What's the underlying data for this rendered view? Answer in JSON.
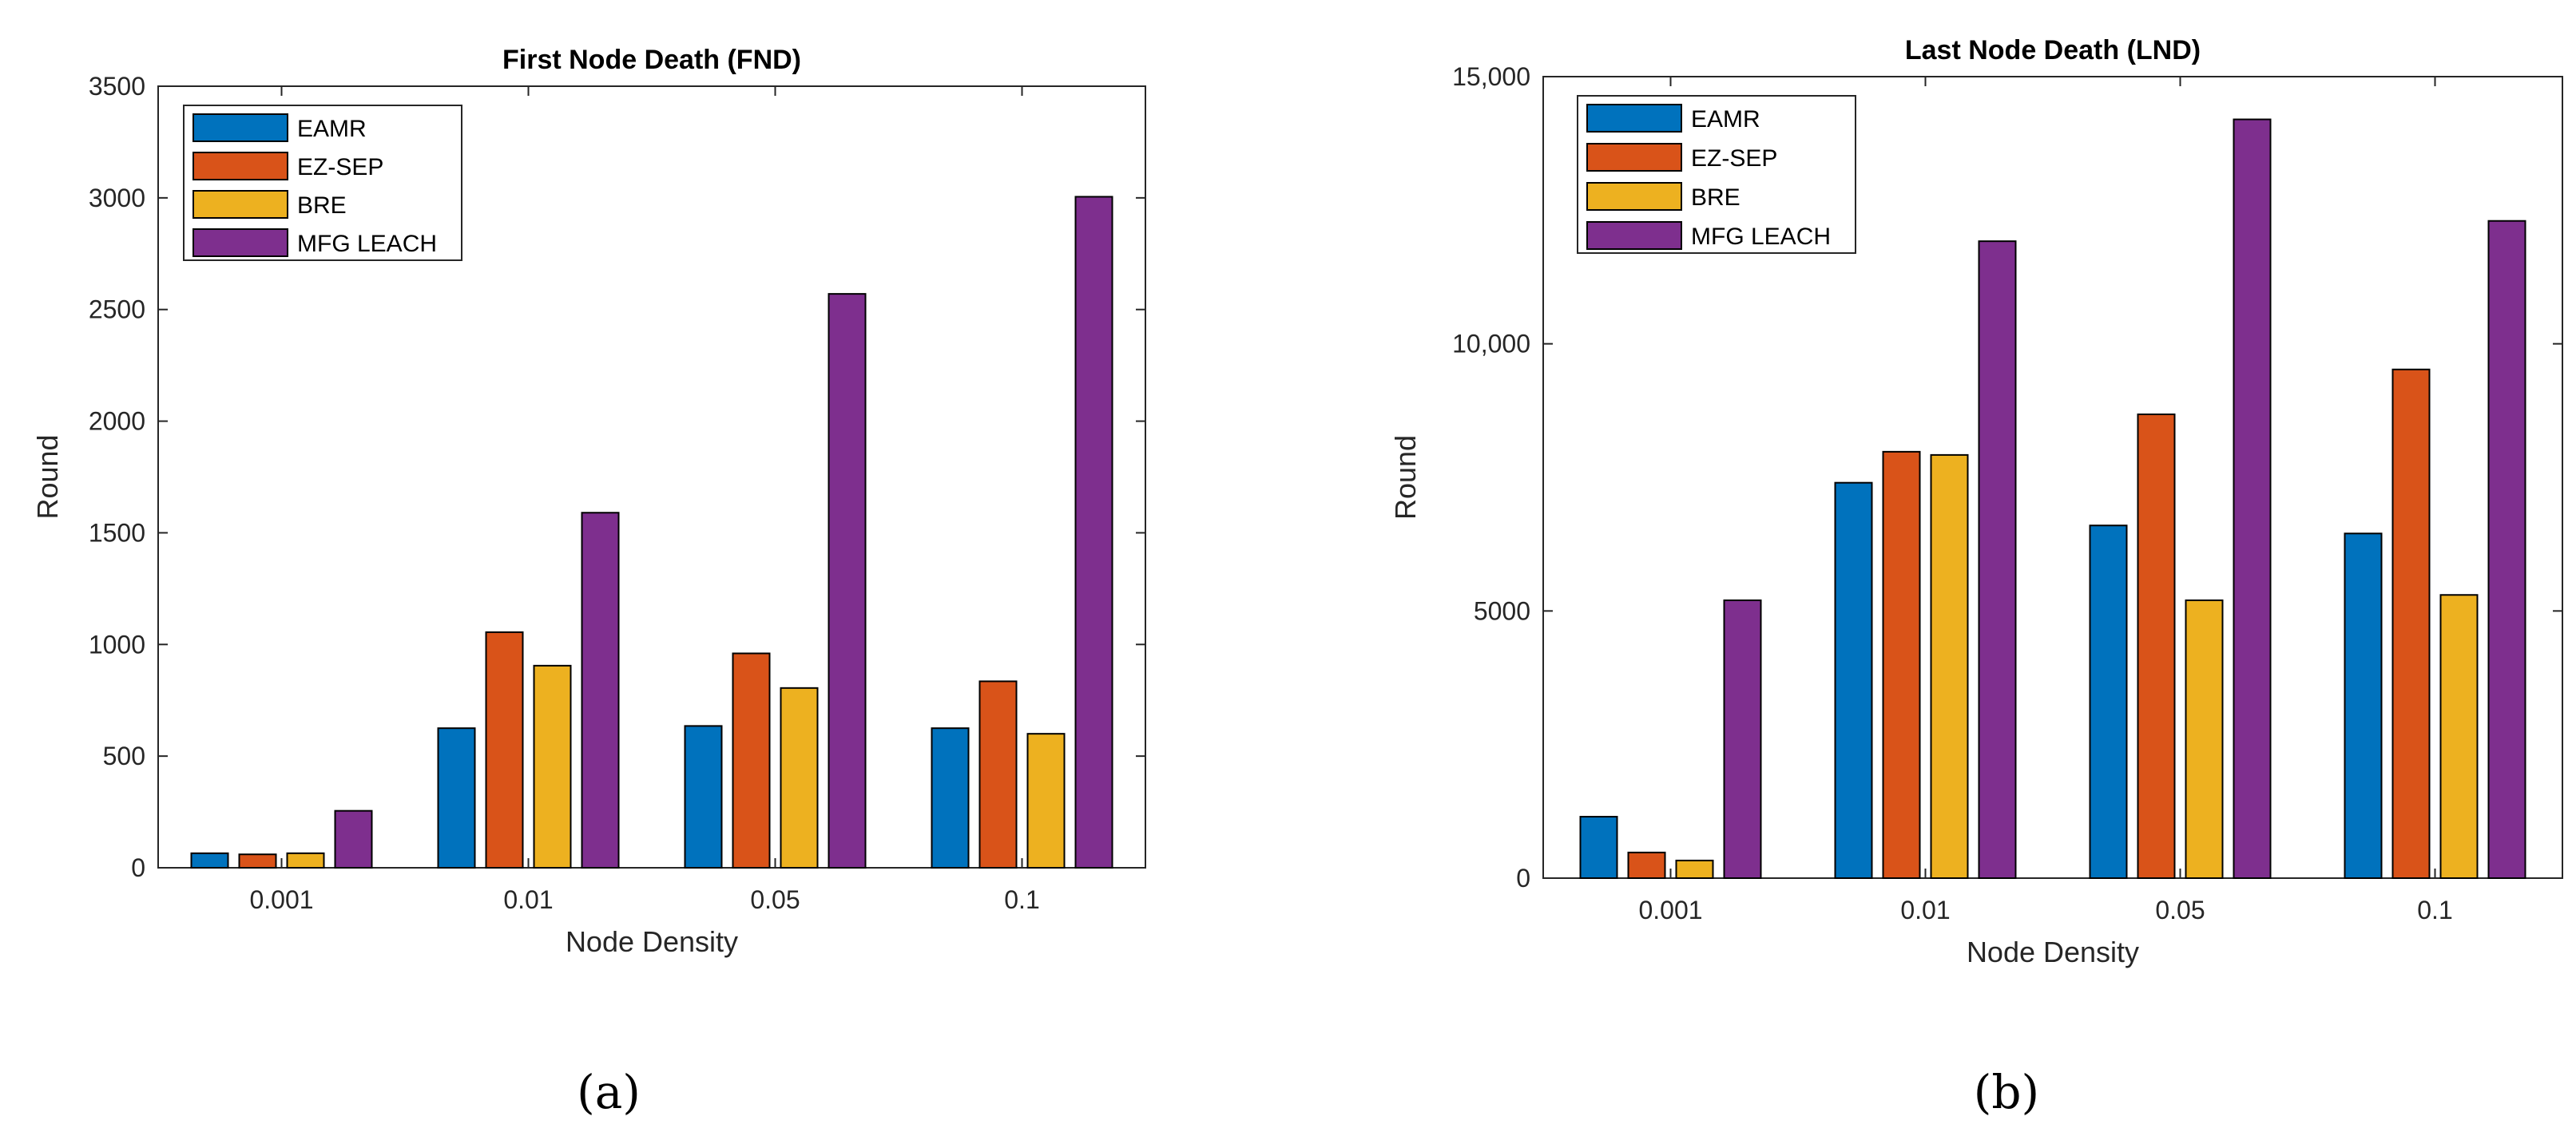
{
  "chart_data": [
    {
      "type": "bar",
      "title": "First Node Death (FND)",
      "xlabel": "Node Density",
      "ylabel": "Round",
      "categories": [
        "0.001",
        "0.01",
        "0.05",
        "0.1"
      ],
      "ylim": [
        0,
        3500
      ],
      "yticks": [
        0,
        500,
        1000,
        1500,
        2000,
        2500,
        3000,
        3500
      ],
      "ytick_labels": [
        "0",
        "500",
        "1000",
        "1500",
        "2000",
        "2500",
        "3000",
        "3500"
      ],
      "legend_position": "top-left",
      "grid": false,
      "series": [
        {
          "name": "EAMR",
          "color": "#0072BD",
          "values": [
            65,
            625,
            635,
            625
          ]
        },
        {
          "name": "EZ-SEP",
          "color": "#D95319",
          "values": [
            60,
            1055,
            960,
            835
          ]
        },
        {
          "name": "BRE",
          "color": "#EDB120",
          "values": [
            65,
            905,
            805,
            600
          ]
        },
        {
          "name": "MFG LEACH",
          "color": "#7E2F8E",
          "values": [
            255,
            1590,
            2570,
            3005
          ]
        }
      ],
      "panel_label": "(a)"
    },
    {
      "type": "bar",
      "title": "Last Node Death (LND)",
      "xlabel": "Node Density",
      "ylabel": "Round",
      "categories": [
        "0.001",
        "0.01",
        "0.05",
        "0.1"
      ],
      "ylim": [
        0,
        15000
      ],
      "yticks": [
        0,
        5000,
        10000,
        15000
      ],
      "ytick_labels": [
        "0",
        "5000",
        "10,000",
        "15,000"
      ],
      "legend_position": "top-left",
      "grid": false,
      "series": [
        {
          "name": "EAMR",
          "color": "#0072BD",
          "values": [
            1150,
            7400,
            6600,
            6450
          ]
        },
        {
          "name": "EZ-SEP",
          "color": "#D95319",
          "values": [
            480,
            7980,
            8680,
            9520
          ]
        },
        {
          "name": "BRE",
          "color": "#EDB120",
          "values": [
            330,
            7920,
            5200,
            5300
          ]
        },
        {
          "name": "MFG LEACH",
          "color": "#7E2F8E",
          "values": [
            5200,
            11920,
            14200,
            12300
          ]
        }
      ],
      "panel_label": "(b)"
    }
  ]
}
